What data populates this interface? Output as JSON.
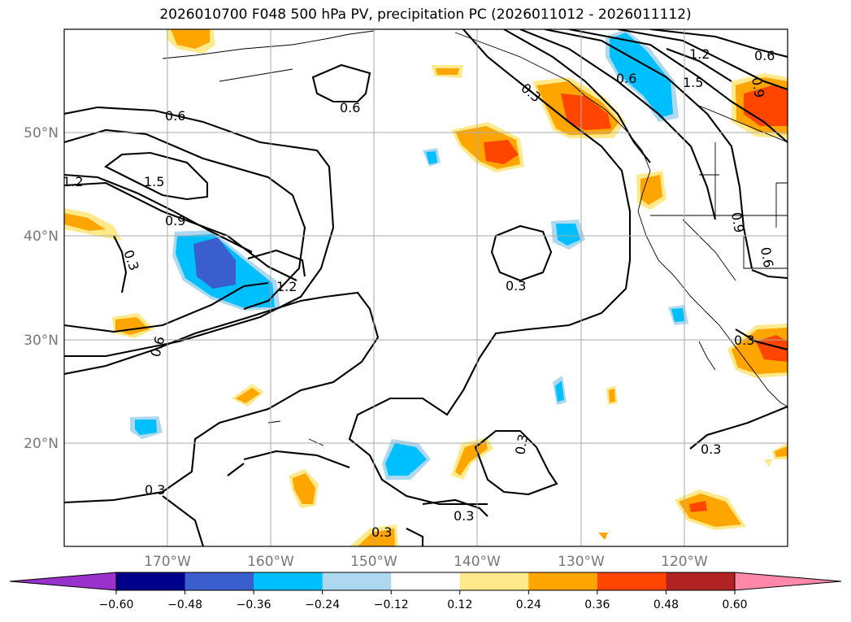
{
  "title": "2026010700 F048 500 hPa PV, precipitation PC (2026011012 - 2026011112)",
  "chart_data": {
    "type": "contour-map",
    "title": "2026010700 F048 500 hPa PV, precipitation PC (2026011012 - 2026011112)",
    "lon_range": [
      -180,
      -110
    ],
    "lat_range": [
      10,
      60
    ],
    "grid": true,
    "lat_ticks": [
      {
        "value": 20,
        "label": "20°N"
      },
      {
        "value": 30,
        "label": "30°N"
      },
      {
        "value": 40,
        "label": "40°N"
      },
      {
        "value": 50,
        "label": "50°N"
      }
    ],
    "lon_ticks": [
      {
        "value": -170,
        "label": "170°W"
      },
      {
        "value": -160,
        "label": "160°W"
      },
      {
        "value": -150,
        "label": "150°W"
      },
      {
        "value": -140,
        "label": "140°W"
      },
      {
        "value": -130,
        "label": "130°W"
      },
      {
        "value": -120,
        "label": "120°W"
      }
    ],
    "pv_contour_labels": [
      "0.3",
      "0.6",
      "0.9",
      "1.2",
      "1.5"
    ],
    "colorbar": {
      "ticks": [
        "−0.60",
        "−0.48",
        "−0.36",
        "−0.24",
        "−0.12",
        "0.12",
        "0.24",
        "0.36",
        "0.48",
        "0.60"
      ],
      "colors": [
        "#9932cc",
        "#00008b",
        "#3a5fcd",
        "#00bfff",
        "#add8f0",
        "#ffffff",
        "#ffe98a",
        "#ffa500",
        "#ff4500",
        "#b22222",
        "#ff88aa"
      ],
      "extend": "both"
    }
  }
}
